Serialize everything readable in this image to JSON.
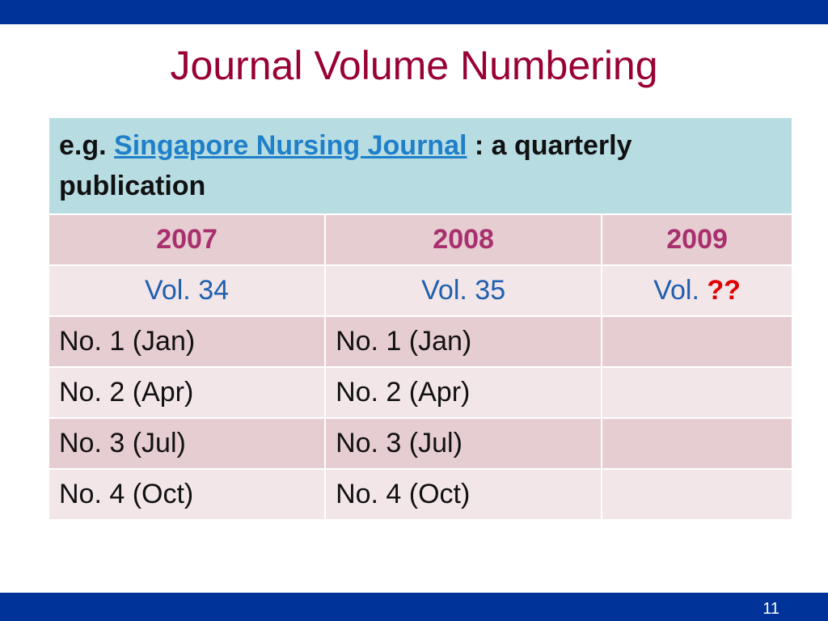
{
  "slide": {
    "title": "Journal Volume Numbering",
    "intro": {
      "prefix": "e.g.",
      "link": "Singapore Nursing Journal",
      "suffix": ": a quarterly publication"
    },
    "table": {
      "years": [
        "2007",
        "2008",
        "2009"
      ],
      "volumes": [
        "Vol. 34",
        "Vol. 35",
        "Vol."
      ],
      "unknown": "??",
      "rows": [
        [
          "No. 1 (Jan)",
          "No. 1 (Jan)"
        ],
        [
          "No. 2 (Apr)",
          "No. 2 (Apr)"
        ],
        [
          "No. 3 (Jul)",
          "No. 3 (Jul)"
        ],
        [
          "No. 4 (Oct)",
          "No. 4 (Oct)"
        ]
      ]
    },
    "page_number": "11"
  }
}
